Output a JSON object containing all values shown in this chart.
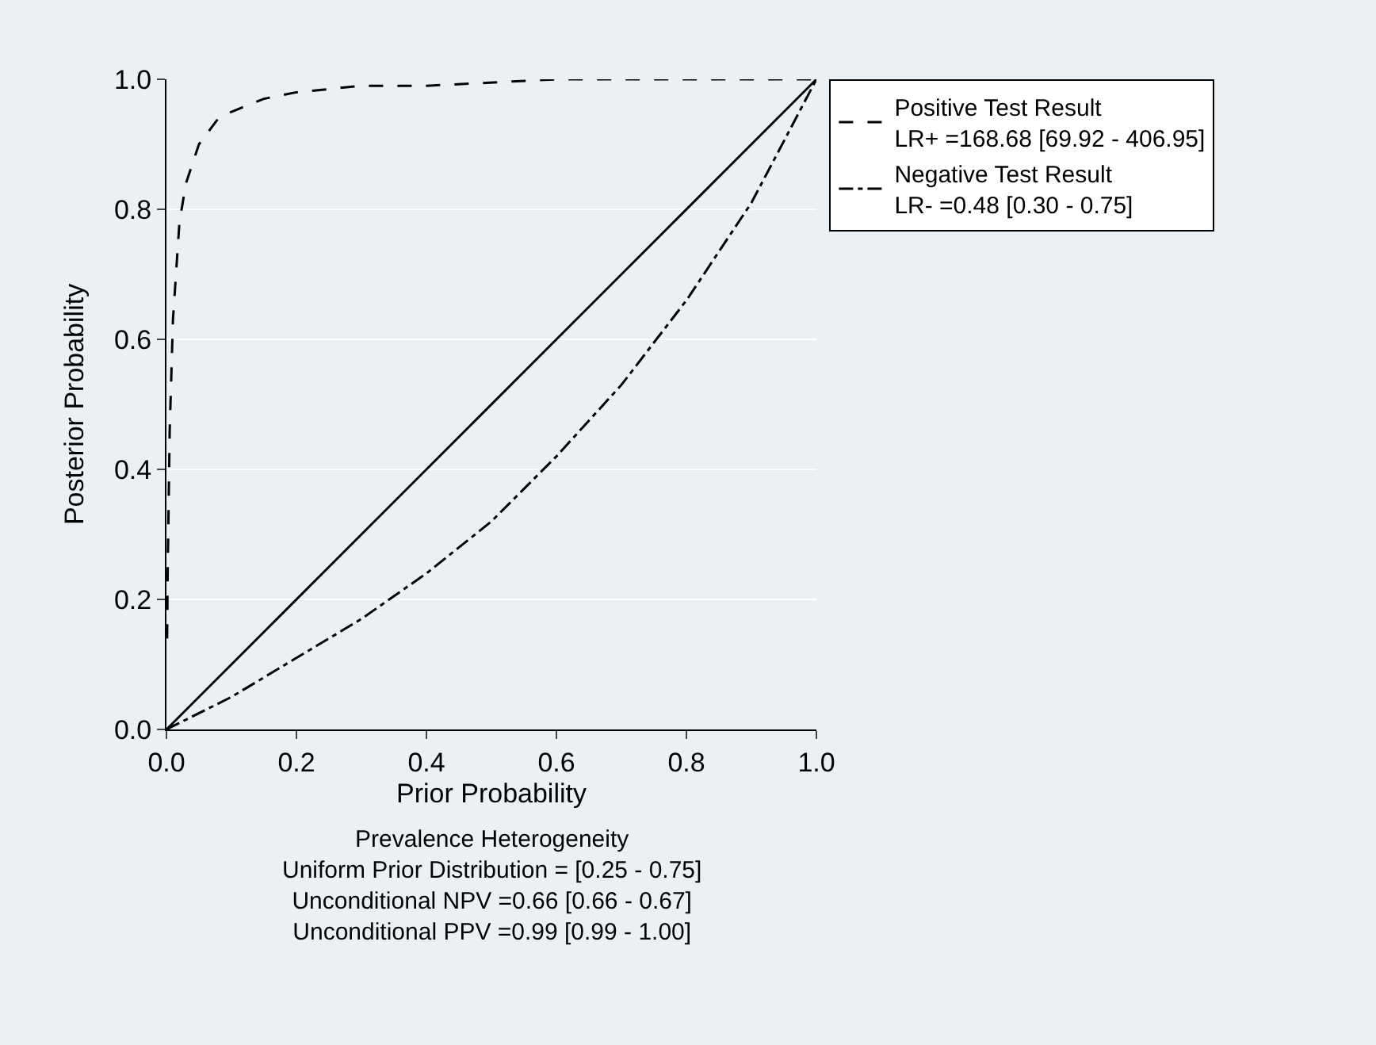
{
  "chart_data": {
    "type": "line",
    "xlabel": "Prior Probability",
    "ylabel": "Posterior Probability",
    "xlim": [
      0,
      1
    ],
    "ylim": [
      0,
      1
    ],
    "xticks": [
      {
        "value": 0,
        "label": "0.0"
      },
      0.2,
      0.4,
      0.6,
      0.8,
      {
        "value": 1,
        "label": "1.0"
      }
    ],
    "yticks": [
      {
        "value": 0,
        "label": "0.0"
      },
      0.2,
      0.4,
      0.6,
      0.8,
      {
        "value": 1,
        "label": "1.0"
      }
    ],
    "grid": "y",
    "legend": "right",
    "marker": "none",
    "series": [
      {
        "name": "Positive Test Result\nLR+ =168.68 [69.92 - 406.95]",
        "color": "#000000",
        "line_style": "dashed",
        "x": [
          0.001,
          0.002,
          0.005,
          0.01,
          0.02,
          0.03,
          0.05,
          0.08,
          0.1,
          0.15,
          0.2,
          0.3,
          0.4,
          0.6,
          0.8,
          1
        ],
        "values": [
          0.14,
          0.25,
          0.46,
          0.63,
          0.78,
          0.84,
          0.9,
          0.94,
          0.95,
          0.97,
          0.98,
          0.99,
          0.99,
          1,
          1,
          1
        ]
      },
      {
        "name": "Negative Test Result\nLR- =0.48 [0.30 - 0.75]",
        "color": "#000000",
        "line_style": "dashdot",
        "x": [
          0,
          0.1,
          0.2,
          0.3,
          0.4,
          0.5,
          0.6,
          0.7,
          0.8,
          0.9,
          1
        ],
        "values": [
          0,
          0.05,
          0.11,
          0.17,
          0.24,
          0.32,
          0.42,
          0.53,
          0.66,
          0.81,
          1
        ]
      },
      {
        "color": "#000000",
        "line_style": "solid",
        "x": [
          0,
          1
        ],
        "values": [
          0,
          1
        ]
      }
    ],
    "annotations": [
      "Prevalence Heterogeneity",
      "Uniform Prior Distribution = [0.25 - 0.75]",
      "Unconditional NPV =0.66 [0.66 - 0.67]",
      "Unconditional PPV =0.99 [0.99 - 1.00]"
    ]
  }
}
